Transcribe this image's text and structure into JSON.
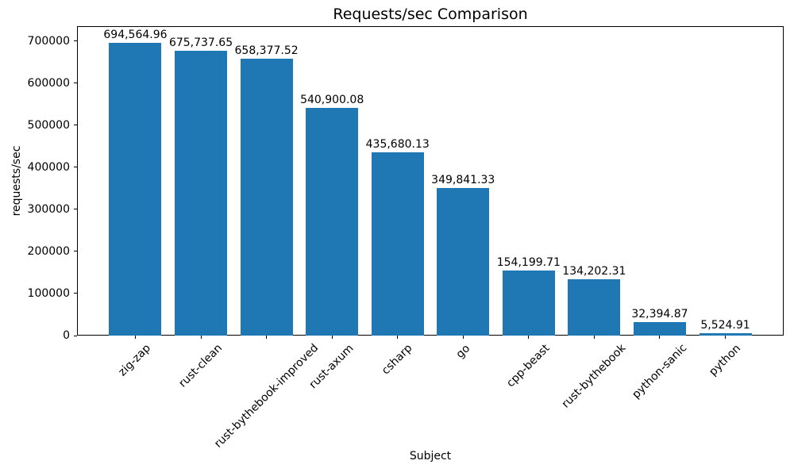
{
  "chart_data": {
    "type": "bar",
    "title": "Requests/sec Comparison",
    "xlabel": "Subject",
    "ylabel": "requests/sec",
    "categories": [
      "zig-zap",
      "rust-clean",
      "rust-bythebook-improved",
      "rust-axum",
      "csharp",
      "go",
      "cpp-beast",
      "rust-bythebook",
      "python-sanic",
      "python"
    ],
    "values": [
      694564.96,
      675737.65,
      658377.52,
      540900.08,
      435680.13,
      349841.33,
      154199.71,
      134202.31,
      32394.87,
      5524.91
    ],
    "value_labels": [
      "694,564.96",
      "675,737.65",
      "658,377.52",
      "540,900.08",
      "435,680.13",
      "349,841.33",
      "154,199.71",
      "134,202.31",
      "32,394.87",
      "5,524.91"
    ],
    "yticks": [
      0,
      100000,
      200000,
      300000,
      400000,
      500000,
      600000,
      700000
    ],
    "ytick_labels": [
      "0",
      "100000",
      "200000",
      "300000",
      "400000",
      "500000",
      "600000",
      "700000"
    ],
    "ylim": [
      0,
      735000
    ],
    "bar_color": "#1f77b4",
    "grid": false,
    "legend": null,
    "x_tick_rotation": 45
  }
}
